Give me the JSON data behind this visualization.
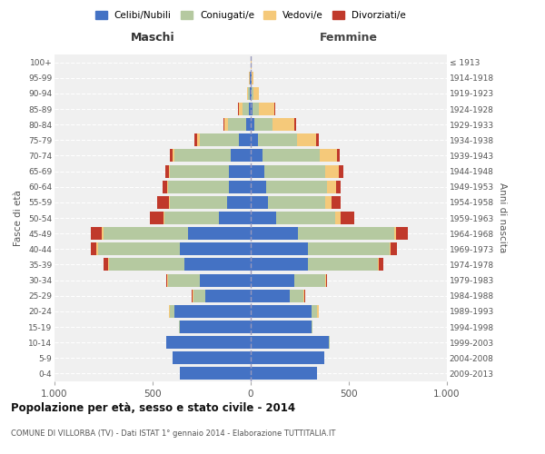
{
  "age_groups": [
    "0-4",
    "5-9",
    "10-14",
    "15-19",
    "20-24",
    "25-29",
    "30-34",
    "35-39",
    "40-44",
    "45-49",
    "50-54",
    "55-59",
    "60-64",
    "65-69",
    "70-74",
    "75-79",
    "80-84",
    "85-89",
    "90-94",
    "95-99",
    "100+"
  ],
  "birth_years": [
    "2009-2013",
    "2004-2008",
    "1999-2003",
    "1994-1998",
    "1989-1993",
    "1984-1988",
    "1979-1983",
    "1974-1978",
    "1969-1973",
    "1964-1968",
    "1959-1963",
    "1954-1958",
    "1949-1953",
    "1944-1948",
    "1939-1943",
    "1934-1938",
    "1929-1933",
    "1924-1928",
    "1919-1923",
    "1914-1918",
    "≤ 1913"
  ],
  "male_celibi": [
    360,
    400,
    430,
    360,
    390,
    230,
    260,
    340,
    360,
    320,
    160,
    120,
    110,
    110,
    100,
    60,
    25,
    10,
    5,
    3,
    2
  ],
  "male_coniugati": [
    0,
    0,
    2,
    5,
    20,
    60,
    160,
    380,
    420,
    430,
    280,
    290,
    310,
    300,
    290,
    200,
    90,
    30,
    10,
    2,
    0
  ],
  "male_vedovi": [
    0,
    0,
    0,
    0,
    5,
    5,
    5,
    5,
    5,
    10,
    5,
    5,
    5,
    5,
    10,
    15,
    20,
    20,
    5,
    2,
    0
  ],
  "male_divorziati": [
    0,
    0,
    0,
    0,
    0,
    5,
    5,
    25,
    30,
    55,
    70,
    60,
    25,
    20,
    10,
    10,
    5,
    5,
    0,
    0,
    0
  ],
  "female_celibi": [
    340,
    375,
    400,
    310,
    310,
    200,
    220,
    290,
    290,
    240,
    130,
    90,
    80,
    70,
    60,
    35,
    20,
    10,
    5,
    3,
    2
  ],
  "female_coniugati": [
    0,
    0,
    2,
    5,
    30,
    70,
    160,
    360,
    420,
    490,
    300,
    290,
    310,
    310,
    290,
    200,
    90,
    30,
    10,
    2,
    0
  ],
  "female_vedovi": [
    0,
    0,
    0,
    0,
    5,
    5,
    5,
    5,
    5,
    10,
    30,
    30,
    45,
    70,
    90,
    100,
    110,
    80,
    25,
    8,
    2
  ],
  "female_divorziati": [
    0,
    0,
    0,
    0,
    0,
    5,
    5,
    20,
    30,
    60,
    70,
    50,
    25,
    20,
    15,
    10,
    10,
    5,
    0,
    0,
    0
  ],
  "color_celibi": "#4472C4",
  "color_coniugati": "#b5c9a0",
  "color_vedovi": "#f5c97a",
  "color_divorziati": "#c0392b",
  "title1": "Popolazione per età, sesso e stato civile - 2014",
  "title2": "COMUNE DI VILLORBA (TV) - Dati ISTAT 1° gennaio 2014 - Elaborazione TUTTITALIA.IT",
  "xlabel_left": "Maschi",
  "xlabel_right": "Femmine",
  "ylabel_left": "Fasce di età",
  "ylabel_right": "Anni di nascita",
  "legend_labels": [
    "Celibi/Nubili",
    "Coniugati/e",
    "Vedovi/e",
    "Divorziati/e"
  ],
  "xlim": 1000,
  "bg_color": "#f0f0f0"
}
